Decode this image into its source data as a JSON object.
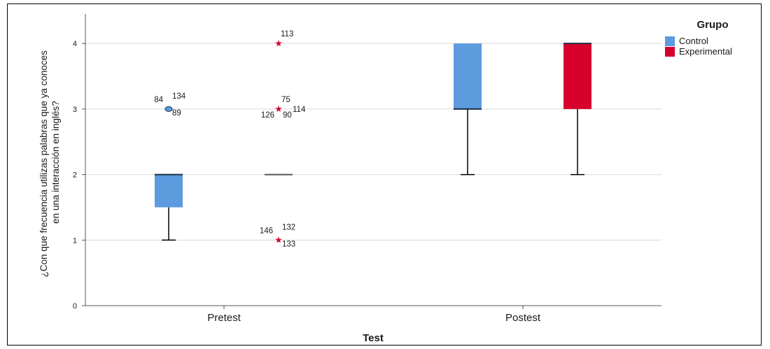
{
  "chart_data": {
    "type": "boxplot",
    "xlabel": "Test",
    "ylabel_lines": [
      "¿Con que frecuencia utilizas palabras que ya conoces",
      "en una interacción en inglés?"
    ],
    "categories": [
      "Pretest",
      "Postest"
    ],
    "ylim": [
      0,
      4.45
    ],
    "y_ticks": [
      "0",
      "1",
      "2",
      "3",
      "4"
    ],
    "grid": true,
    "legend": {
      "title": "Grupo",
      "placement": "right",
      "items": [
        {
          "name": "Control",
          "color": "#5b9bde"
        },
        {
          "name": "Experimental",
          "color": "#d7002c"
        }
      ]
    },
    "boxes": [
      {
        "category": "Pretest",
        "group": "Control",
        "min": 1,
        "q1": 1.5,
        "median": 2,
        "q3": 2,
        "max": 2,
        "outliers": [
          {
            "value": 3,
            "marker": "circle",
            "labels": [
              "84",
              "134",
              "89"
            ]
          }
        ]
      },
      {
        "category": "Pretest",
        "group": "Experimental",
        "min": 2,
        "q1": 2,
        "median": 2,
        "q3": 2,
        "max": 2,
        "outliers": [
          {
            "value": 4,
            "marker": "star",
            "labels": [
              "113"
            ]
          },
          {
            "value": 3,
            "marker": "star",
            "labels": [
              "75",
              "114",
              "126",
              "90"
            ]
          },
          {
            "value": 1,
            "marker": "star",
            "labels": [
              "146",
              "132",
              "133"
            ]
          }
        ]
      },
      {
        "category": "Postest",
        "group": "Control",
        "min": 2,
        "q1": 3,
        "median": 3,
        "q3": 4,
        "max": 4,
        "outliers": []
      },
      {
        "category": "Postest",
        "group": "Experimental",
        "min": 2,
        "q1": 3,
        "median": 4,
        "q3": 4,
        "max": 4,
        "outliers": []
      }
    ]
  }
}
